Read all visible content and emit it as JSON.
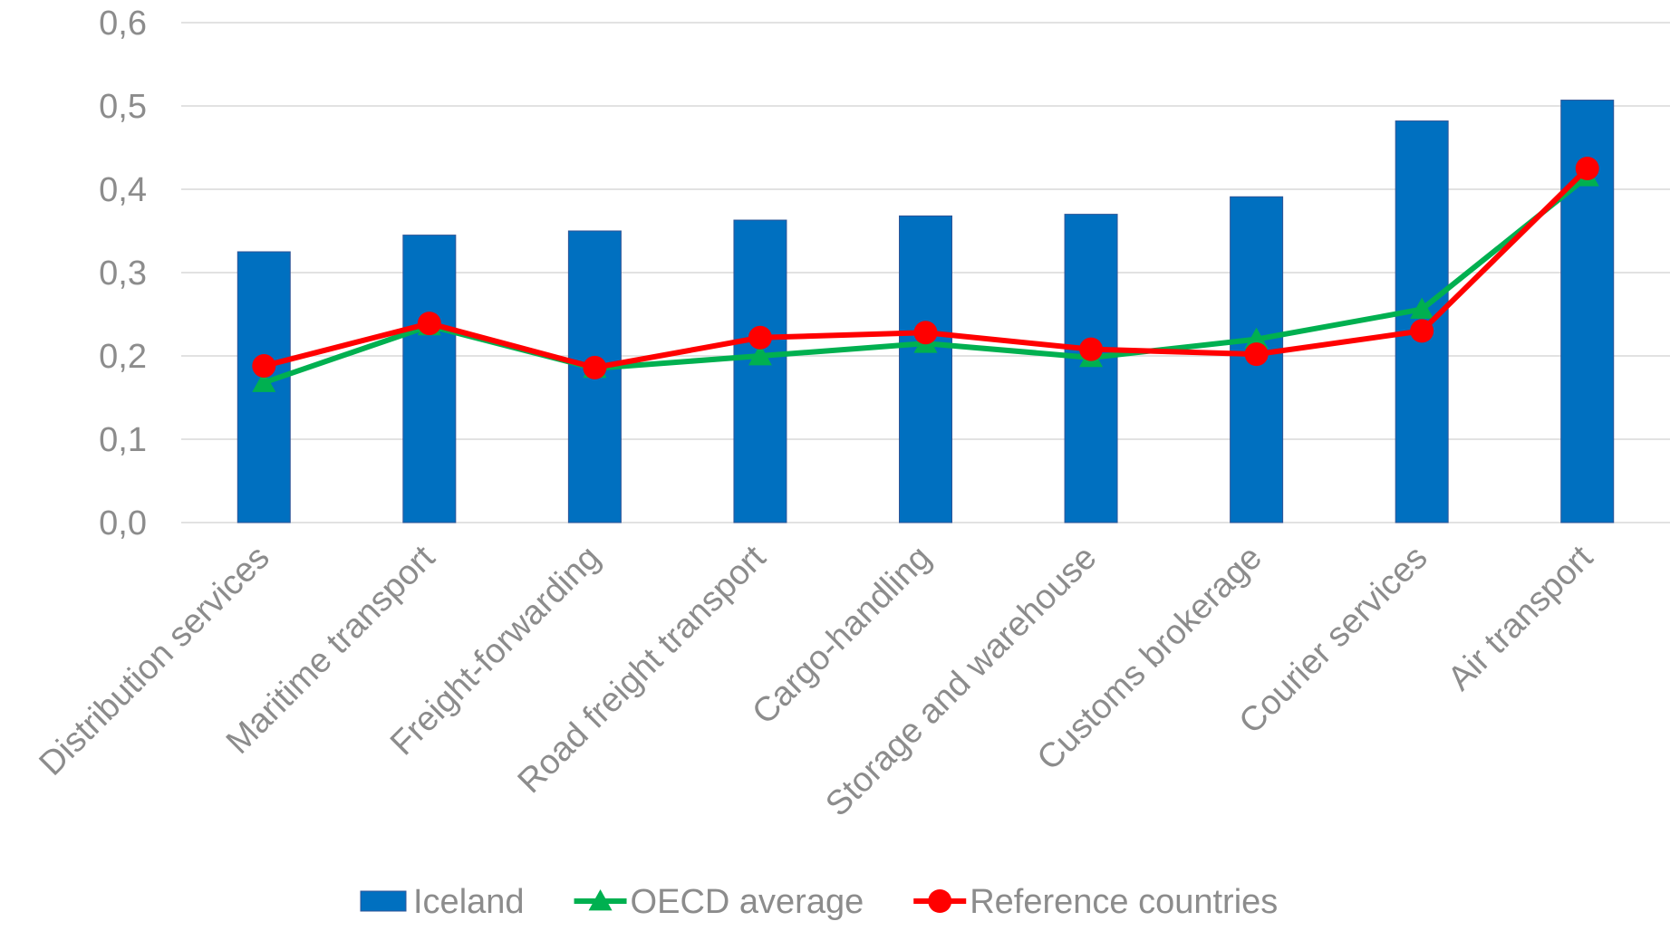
{
  "chart_data": {
    "type": "bar",
    "categories": [
      "Distribution services",
      "Maritime transport",
      "Freight-forwarding",
      "Road freight transport",
      "Cargo-handling",
      "Storage and warehouse",
      "Customs brokerage",
      "Courier services",
      "Air transport"
    ],
    "series": [
      {
        "name": "Iceland",
        "type": "bar",
        "color": "#0070C0",
        "values": [
          0.325,
          0.345,
          0.35,
          0.363,
          0.368,
          0.37,
          0.391,
          0.482,
          0.507
        ]
      },
      {
        "name": "OECD average",
        "type": "line",
        "marker": "triangle",
        "color": "#00B050",
        "values": [
          0.168,
          0.236,
          0.185,
          0.2,
          0.215,
          0.198,
          0.22,
          0.256,
          0.415
        ]
      },
      {
        "name": "Reference countries",
        "type": "line",
        "marker": "circle",
        "color": "#FF0000",
        "values": [
          0.188,
          0.239,
          0.186,
          0.222,
          0.228,
          0.208,
          0.202,
          0.23,
          0.425
        ]
      }
    ],
    "ylim": [
      0,
      0.6
    ],
    "yticks": [
      "0,0",
      "0,1",
      "0,2",
      "0,3",
      "0,4",
      "0,5",
      "0,6"
    ],
    "grid": true,
    "legend_position": "bottom",
    "title": "",
    "xlabel": "",
    "ylabel": ""
  }
}
